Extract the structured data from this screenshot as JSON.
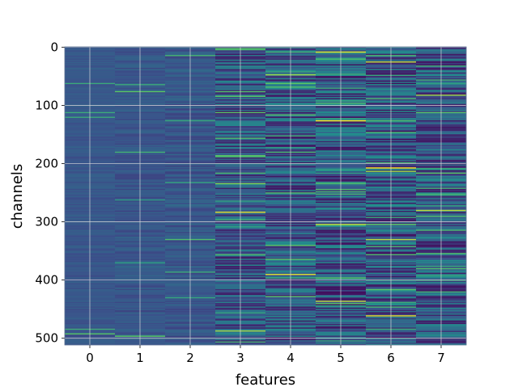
{
  "chart_data": {
    "type": "heatmap",
    "title": "",
    "xlabel": "features",
    "ylabel": "channels",
    "x_ticks": [
      "0",
      "1",
      "2",
      "3",
      "4",
      "5",
      "6",
      "7"
    ],
    "y_ticks": [
      "0",
      "100",
      "200",
      "300",
      "400",
      "500"
    ],
    "y_tick_values": [
      0,
      100,
      200,
      300,
      400,
      500
    ],
    "n_features": 8,
    "n_channels": 512,
    "colormap": "viridis",
    "grid": true,
    "base_color": "#3b5a8c",
    "feature_variability": [
      0.04,
      0.06,
      0.07,
      0.2,
      0.22,
      0.24,
      0.24,
      0.22
    ],
    "bright_stripes": [
      {
        "feature": 3,
        "channel": 283,
        "value": 0.95
      },
      {
        "feature": 3,
        "channel": 487,
        "value": 0.85
      },
      {
        "feature": 3,
        "channel": 234,
        "value": 0.8
      },
      {
        "feature": 4,
        "channel": 390,
        "value": 0.95
      },
      {
        "feature": 4,
        "channel": 47,
        "value": 0.85
      },
      {
        "feature": 5,
        "channel": 8,
        "value": 0.95
      },
      {
        "feature": 5,
        "channel": 126,
        "value": 1.0
      },
      {
        "feature": 5,
        "channel": 304,
        "value": 0.9
      },
      {
        "feature": 5,
        "channel": 436,
        "value": 0.9
      },
      {
        "feature": 6,
        "channel": 25,
        "value": 0.9
      },
      {
        "feature": 6,
        "channel": 207,
        "value": 1.0
      },
      {
        "feature": 6,
        "channel": 213,
        "value": 0.85
      },
      {
        "feature": 6,
        "channel": 330,
        "value": 0.9
      },
      {
        "feature": 6,
        "channel": 461,
        "value": 0.95
      },
      {
        "feature": 7,
        "channel": 280,
        "value": 0.9
      },
      {
        "feature": 7,
        "channel": 82,
        "value": 0.85
      }
    ]
  }
}
